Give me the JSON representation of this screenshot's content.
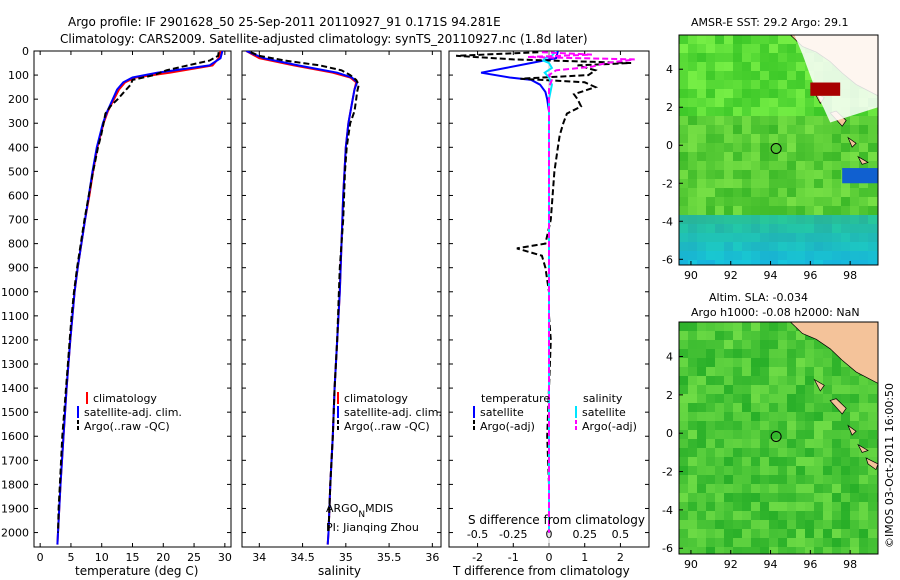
{
  "title": {
    "line1": "Argo profile: IF 2901628_50 25-Sep-2011 20110927_91 0.171S 94.281E",
    "line2": "Climatology: CARS2009. Satellite-adjusted climatology: synTS_20110927.nc (1.8d later)"
  },
  "colors": {
    "climatology": "#ff0000",
    "satellite_adj": "#0000ff",
    "argo": "#000000",
    "sal_satellite": "#00e5ff",
    "sal_argo": "#ff00ff",
    "land": "#f4c39a"
  },
  "chart_data": [
    {
      "type": "line",
      "panel": "temperature",
      "xlabel": "temperature (deg C)",
      "ylabel": "",
      "xlim": [
        -1,
        31
      ],
      "ylim": [
        2060,
        0
      ],
      "xticks": [
        "0",
        "5",
        "10",
        "15",
        "20",
        "25",
        "30"
      ],
      "yticks": [
        "0",
        "100",
        "200",
        "300",
        "400",
        "500",
        "600",
        "700",
        "800",
        "900",
        "1000",
        "1100",
        "1200",
        "1300",
        "1400",
        "1500",
        "1600",
        "1700",
        "1800",
        "1900",
        "2000"
      ],
      "legend": [
        "climatology",
        "satellite-adj. clim.",
        "Argo(..raw -QC)"
      ],
      "series": [
        {
          "name": "climatology",
          "depth": [
            0,
            30,
            60,
            90,
            110,
            130,
            160,
            200,
            250,
            300,
            400,
            500,
            600,
            700,
            800,
            900,
            1000,
            1200,
            1400,
            1600,
            1800,
            2000,
            2050
          ],
          "values": [
            29.3,
            29.0,
            28.0,
            21.0,
            15.5,
            13.8,
            12.8,
            12.0,
            11.0,
            10.3,
            9.3,
            8.6,
            8.0,
            7.3,
            6.7,
            6.1,
            5.6,
            4.9,
            4.3,
            3.8,
            3.3,
            2.9,
            2.8
          ]
        },
        {
          "name": "satellite-adj. clim.",
          "depth": [
            0,
            30,
            60,
            90,
            110,
            130,
            160,
            200,
            250,
            300,
            400,
            500,
            600,
            700,
            800,
            900,
            1000,
            1200,
            1400,
            1600,
            1800,
            2000,
            2050
          ],
          "values": [
            29.6,
            29.3,
            27.5,
            19.0,
            15.0,
            13.5,
            12.5,
            11.8,
            10.9,
            10.2,
            9.2,
            8.5,
            7.9,
            7.3,
            6.7,
            6.1,
            5.6,
            4.9,
            4.3,
            3.8,
            3.3,
            2.9,
            2.8
          ]
        },
        {
          "name": "Argo(..raw -QC)",
          "depth": [
            5,
            20,
            40,
            60,
            80,
            100,
            120,
            140,
            160,
            180,
            200,
            230,
            260,
            300,
            350,
            400,
            450,
            500,
            600,
            700,
            800,
            900,
            1000,
            1100,
            1200,
            1300,
            1400,
            1500,
            1600,
            1700,
            1800,
            1900,
            2000
          ],
          "values": [
            29.0,
            28.9,
            27.5,
            24.0,
            20.5,
            18.5,
            15.0,
            14.7,
            14.0,
            13.3,
            12.6,
            11.4,
            10.6,
            10.3,
            9.9,
            9.4,
            9.0,
            8.6,
            7.9,
            7.2,
            6.6,
            6.0,
            5.5,
            5.1,
            4.8,
            4.5,
            4.2,
            3.9,
            3.6,
            3.4,
            3.2,
            3.0,
            2.9
          ]
        }
      ]
    },
    {
      "type": "line",
      "panel": "salinity",
      "xlabel": "salinity",
      "xlim": [
        33.8,
        36.1
      ],
      "ylim": [
        2060,
        0
      ],
      "xticks": [
        "34",
        "34.5",
        "35",
        "35.5",
        "36"
      ],
      "legend": [
        "climatology",
        "satellite-adj. clim.",
        "Argo(..raw -QC)"
      ],
      "annotation": {
        "line1_pre": "ARGO",
        "line1_sub": "N",
        "line1_post": "MDIS",
        "line2": "PI: Jianqing Zhou"
      },
      "series": [
        {
          "name": "climatology",
          "depth": [
            0,
            30,
            60,
            90,
            110,
            130,
            160,
            200,
            300,
            400,
            600,
            800,
            1000,
            1200,
            1400,
            1600,
            1800,
            2000,
            2050
          ],
          "values": [
            33.85,
            34.0,
            34.4,
            34.85,
            35.05,
            35.12,
            35.1,
            35.08,
            35.03,
            35.0,
            34.97,
            34.95,
            34.93,
            34.9,
            34.87,
            34.85,
            34.82,
            34.8,
            34.79
          ]
        },
        {
          "name": "satellite-adj. clim.",
          "depth": [
            0,
            30,
            60,
            90,
            110,
            130,
            160,
            200,
            300,
            400,
            600,
            800,
            1000,
            1200,
            1400,
            1600,
            1800,
            2000,
            2050
          ],
          "values": [
            33.85,
            34.05,
            34.45,
            34.9,
            35.07,
            35.13,
            35.1,
            35.08,
            35.03,
            35.0,
            34.97,
            34.95,
            34.93,
            34.9,
            34.87,
            34.85,
            34.82,
            34.8,
            34.79
          ]
        },
        {
          "name": "Argo(..raw -QC)",
          "depth": [
            5,
            20,
            40,
            60,
            80,
            100,
            120,
            140,
            170,
            200,
            250,
            300,
            400,
            500,
            600,
            700,
            800,
            900,
            1000,
            1200,
            1400,
            1600,
            1800,
            2000
          ],
          "values": [
            33.9,
            34.0,
            34.3,
            34.7,
            34.95,
            35.05,
            35.12,
            35.15,
            35.13,
            35.12,
            35.1,
            35.05,
            35.01,
            34.99,
            34.98,
            34.97,
            34.95,
            34.93,
            34.92,
            34.9,
            34.87,
            34.85,
            34.82,
            34.8
          ]
        }
      ]
    },
    {
      "type": "line",
      "panel": "differences",
      "xlabel": "T difference from climatology",
      "xlabel_top": "S difference from climatology",
      "xlim": [
        -2.8,
        2.8
      ],
      "ylim": [
        2060,
        0
      ],
      "xticks": [
        "-2",
        "-1",
        "0",
        "1",
        "2"
      ],
      "xticks_top": [
        "-0.5",
        "-0.25",
        "0",
        "0.25",
        "0.5"
      ],
      "legend_temperature": {
        "title": "temperature",
        "items": [
          "satellite",
          "Argo(-adj)"
        ]
      },
      "legend_salinity": {
        "title": "salinity",
        "items": [
          "satellite",
          "Argo(-adj)"
        ]
      },
      "series": [
        {
          "name": "T satellite",
          "depth": [
            0,
            30,
            50,
            70,
            90,
            110,
            120,
            140,
            170,
            200,
            250,
            300,
            400,
            600,
            800,
            1000,
            1400,
            2000
          ],
          "values": [
            0.25,
            0.2,
            -0.5,
            -1.2,
            -1.9,
            -1.1,
            -0.5,
            -0.25,
            -0.1,
            -0.05,
            0.0,
            0.0,
            0.0,
            0.0,
            0.0,
            0.0,
            0.0,
            0.0
          ]
        },
        {
          "name": "T Argo(-adj)",
          "depth": [
            5,
            20,
            35,
            50,
            60,
            80,
            100,
            115,
            130,
            150,
            180,
            200,
            230,
            260,
            300,
            350,
            400,
            500,
            600,
            700,
            800,
            820,
            850,
            900,
            1000,
            1100,
            1200,
            1400,
            1600,
            1800,
            2000
          ],
          "values": [
            -0.3,
            -2.6,
            -1.0,
            2.3,
            0.8,
            1.3,
            1.1,
            -0.8,
            1.0,
            1.3,
            0.7,
            0.8,
            0.9,
            0.5,
            0.4,
            0.3,
            0.25,
            0.15,
            0.1,
            0.05,
            -0.1,
            -0.9,
            -0.2,
            -0.1,
            0.0,
            0.0,
            0.05,
            0.0,
            -0.05,
            0.0,
            0.0
          ]
        },
        {
          "name": "S satellite",
          "depth": [
            0,
            20,
            30,
            40,
            50,
            70,
            90,
            110,
            140,
            200,
            300,
            400,
            600,
            800,
            1000,
            1400,
            2000
          ],
          "values": [
            0.05,
            0.02,
            -0.03,
            -0.04,
            0.0,
            0.02,
            -0.03,
            0.0,
            0.02,
            0.0,
            0.0,
            0.0,
            0.0,
            0.0,
            0.0,
            0.0,
            0.0
          ]
        },
        {
          "name": "S Argo(-adj)",
          "depth": [
            5,
            15,
            25,
            35,
            50,
            65,
            80,
            100,
            120,
            150,
            200,
            300,
            400,
            600,
            800,
            1000,
            1200,
            1400,
            1600,
            1800,
            2000
          ],
          "values": [
            -0.05,
            0.3,
            -0.15,
            0.6,
            0.4,
            0.3,
            0.05,
            0.0,
            0.02,
            0.0,
            0.0,
            0.0,
            0.0,
            0.0,
            0.0,
            0.0,
            0.0,
            0.0,
            0.0,
            0.0,
            0.0
          ]
        }
      ]
    },
    {
      "type": "heatmap",
      "panel": "sst_map",
      "title": "AMSR-E SST: 29.2  Argo: 29.1",
      "xlim": [
        89.4,
        99.4
      ],
      "ylim": [
        -6.3,
        5.8
      ],
      "xticks": [
        "90",
        "92",
        "94",
        "96",
        "98"
      ],
      "yticks": [
        "-6",
        "-4",
        "-2",
        "0",
        "2",
        "4"
      ],
      "marker": {
        "lon": 94.281,
        "lat": -0.171
      }
    },
    {
      "type": "heatmap",
      "panel": "sla_map",
      "title_line1": "Altim. SLA: -0.034",
      "title_line2": "Argo h1000: -0.08 h2000: NaN",
      "xlim": [
        89.4,
        99.4
      ],
      "ylim": [
        -6.3,
        5.8
      ],
      "xticks": [
        "90",
        "92",
        "94",
        "96",
        "98"
      ],
      "yticks": [
        "-6",
        "-4",
        "-2",
        "0",
        "2",
        "4"
      ],
      "marker": {
        "lon": 94.281,
        "lat": -0.171
      }
    }
  ],
  "credit": "©IMOS 03-Oct-2011 16:00:50"
}
